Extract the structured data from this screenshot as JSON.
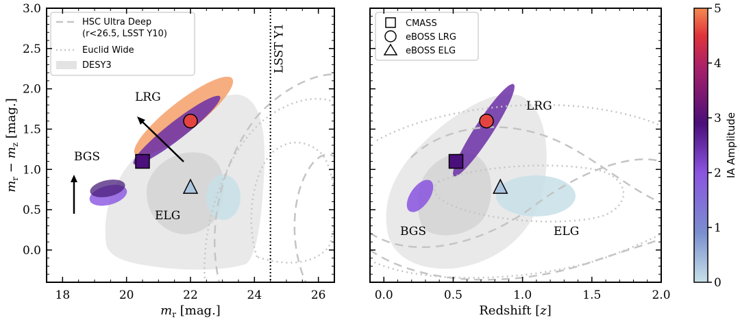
{
  "chart_data": [
    {
      "type": "scatter",
      "xlabel": "m_r [mag.]",
      "ylabel": "m_r − m_z [mag.]",
      "xlim": [
        17.5,
        26.5
      ],
      "ylim": [
        -0.4,
        3.0
      ],
      "xticks": [
        "18",
        "20",
        "22",
        "24",
        "26"
      ],
      "yticks": [
        "0.0",
        "0.5",
        "1.0",
        "1.5",
        "2.0",
        "2.5",
        "3.0"
      ],
      "legend": [
        "HSC Ultra Deep",
        "(r<26.5, LSST Y10)",
        "Euclid Wide",
        "DESY3"
      ],
      "legend_position": "top-left",
      "limit_line": {
        "label": "LSST Y1",
        "x": 24.5
      },
      "annotations": [
        "LRG",
        "BGS",
        "ELG"
      ],
      "points": [
        {
          "name": "CMASS",
          "marker": "square",
          "x": 20.5,
          "y": 1.1,
          "ia": 2.9
        },
        {
          "name": "eBOSS LRG",
          "marker": "circle",
          "x": 22.0,
          "y": 1.6,
          "ia": 4.6
        },
        {
          "name": "eBOSS ELG",
          "marker": "triangle",
          "x": 22.0,
          "y": 0.78,
          "ia": 0.3
        }
      ]
    },
    {
      "type": "scatter",
      "xlabel": "Redshift [z]",
      "xlim": [
        -0.1,
        2.0
      ],
      "ylim": [
        -0.4,
        3.0
      ],
      "xticks": [
        "0.0",
        "0.5",
        "1.0",
        "1.5",
        "2.0"
      ],
      "legend": [
        "CMASS",
        "eBOSS LRG",
        "eBOSS ELG"
      ],
      "legend_position": "top-left",
      "annotations": [
        "LRG",
        "BGS",
        "ELG"
      ],
      "points": [
        {
          "name": "CMASS",
          "marker": "square",
          "x": 0.52,
          "y": 1.1,
          "ia": 2.9
        },
        {
          "name": "eBOSS LRG",
          "marker": "circle",
          "x": 0.74,
          "y": 1.6,
          "ia": 4.6
        },
        {
          "name": "eBOSS ELG",
          "marker": "triangle",
          "x": 0.84,
          "y": 0.78,
          "ia": 0.3
        }
      ]
    }
  ],
  "colorbar": {
    "label": "IA Amplitude",
    "min": 0,
    "max": 5,
    "ticks": [
      "0",
      "1",
      "2",
      "3",
      "4",
      "5"
    ],
    "stops": [
      "#c7e1e8",
      "#7a8fcf",
      "#8a54e0",
      "#4a0f7a",
      "#a8206a",
      "#e0333a",
      "#f58a52"
    ]
  }
}
